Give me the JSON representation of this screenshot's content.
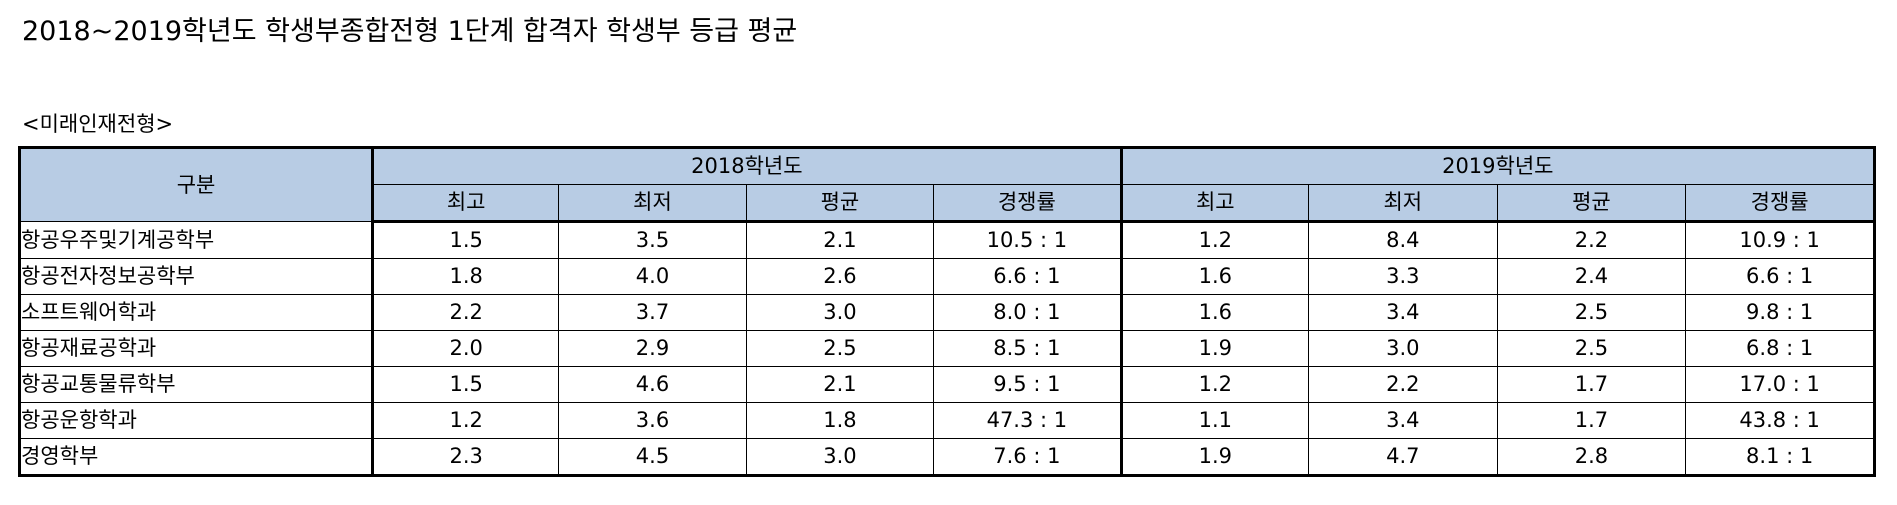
{
  "title": "2018~2019학년도 학생부종합전형 1단계 합격자 학생부 등급 평균",
  "section": "<미래인재전형>",
  "table": {
    "category_header": "구분",
    "years": [
      "2018학년도",
      "2019학년도"
    ],
    "columns": [
      "최고",
      "최저",
      "평균",
      "경쟁률"
    ],
    "rows": [
      {
        "name": "항공우주및기계공학부",
        "y2018": [
          "1.5",
          "3.5",
          "2.1",
          "10.5 : 1"
        ],
        "y2019": [
          "1.2",
          "8.4",
          "2.2",
          "10.9 : 1"
        ]
      },
      {
        "name": "항공전자정보공학부",
        "y2018": [
          "1.8",
          "4.0",
          "2.6",
          "6.6 : 1"
        ],
        "y2019": [
          "1.6",
          "3.3",
          "2.4",
          "6.6 : 1"
        ]
      },
      {
        "name": "소프트웨어학과",
        "y2018": [
          "2.2",
          "3.7",
          "3.0",
          "8.0 : 1"
        ],
        "y2019": [
          "1.6",
          "3.4",
          "2.5",
          "9.8 : 1"
        ]
      },
      {
        "name": "항공재료공학과",
        "y2018": [
          "2.0",
          "2.9",
          "2.5",
          "8.5 : 1"
        ],
        "y2019": [
          "1.9",
          "3.0",
          "2.5",
          "6.8 : 1"
        ]
      },
      {
        "name": "항공교통물류학부",
        "y2018": [
          "1.5",
          "4.6",
          "2.1",
          "9.5 : 1"
        ],
        "y2019": [
          "1.2",
          "2.2",
          "1.7",
          "17.0 : 1"
        ]
      },
      {
        "name": "항공운항학과",
        "y2018": [
          "1.2",
          "3.6",
          "1.8",
          "47.3 : 1"
        ],
        "y2019": [
          "1.1",
          "3.4",
          "1.7",
          "43.8 : 1"
        ]
      },
      {
        "name": "경영학부",
        "y2018": [
          "2.3",
          "4.5",
          "3.0",
          "7.6 : 1"
        ],
        "y2019": [
          "1.9",
          "4.7",
          "2.8",
          "8.1 : 1"
        ]
      }
    ]
  },
  "colors": {
    "header_bg": "#b8cce4"
  }
}
